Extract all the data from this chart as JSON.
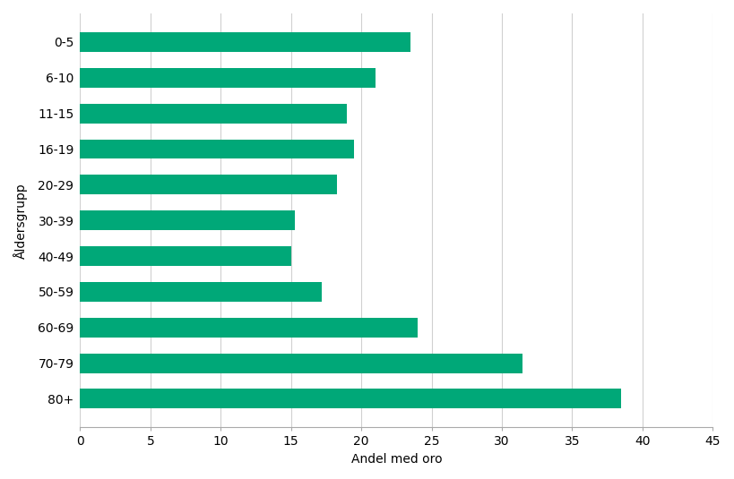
{
  "categories": [
    "0-5",
    "6-10",
    "11-15",
    "16-19",
    "20-29",
    "30-39",
    "40-49",
    "50-59",
    "60-69",
    "70-79",
    "80+"
  ],
  "values": [
    23.5,
    21.0,
    19.0,
    19.5,
    18.3,
    15.3,
    15.0,
    17.2,
    24.0,
    31.5,
    38.5
  ],
  "bar_color": "#00A878",
  "xlabel": "Andel med oro",
  "ylabel": "Åldersgrupp",
  "xlim": [
    0,
    45
  ],
  "xticks": [
    0,
    5,
    10,
    15,
    20,
    25,
    30,
    35,
    40,
    45
  ],
  "background_color": "#ffffff",
  "bar_height": 0.55,
  "grid_color": "#d0d0d0"
}
